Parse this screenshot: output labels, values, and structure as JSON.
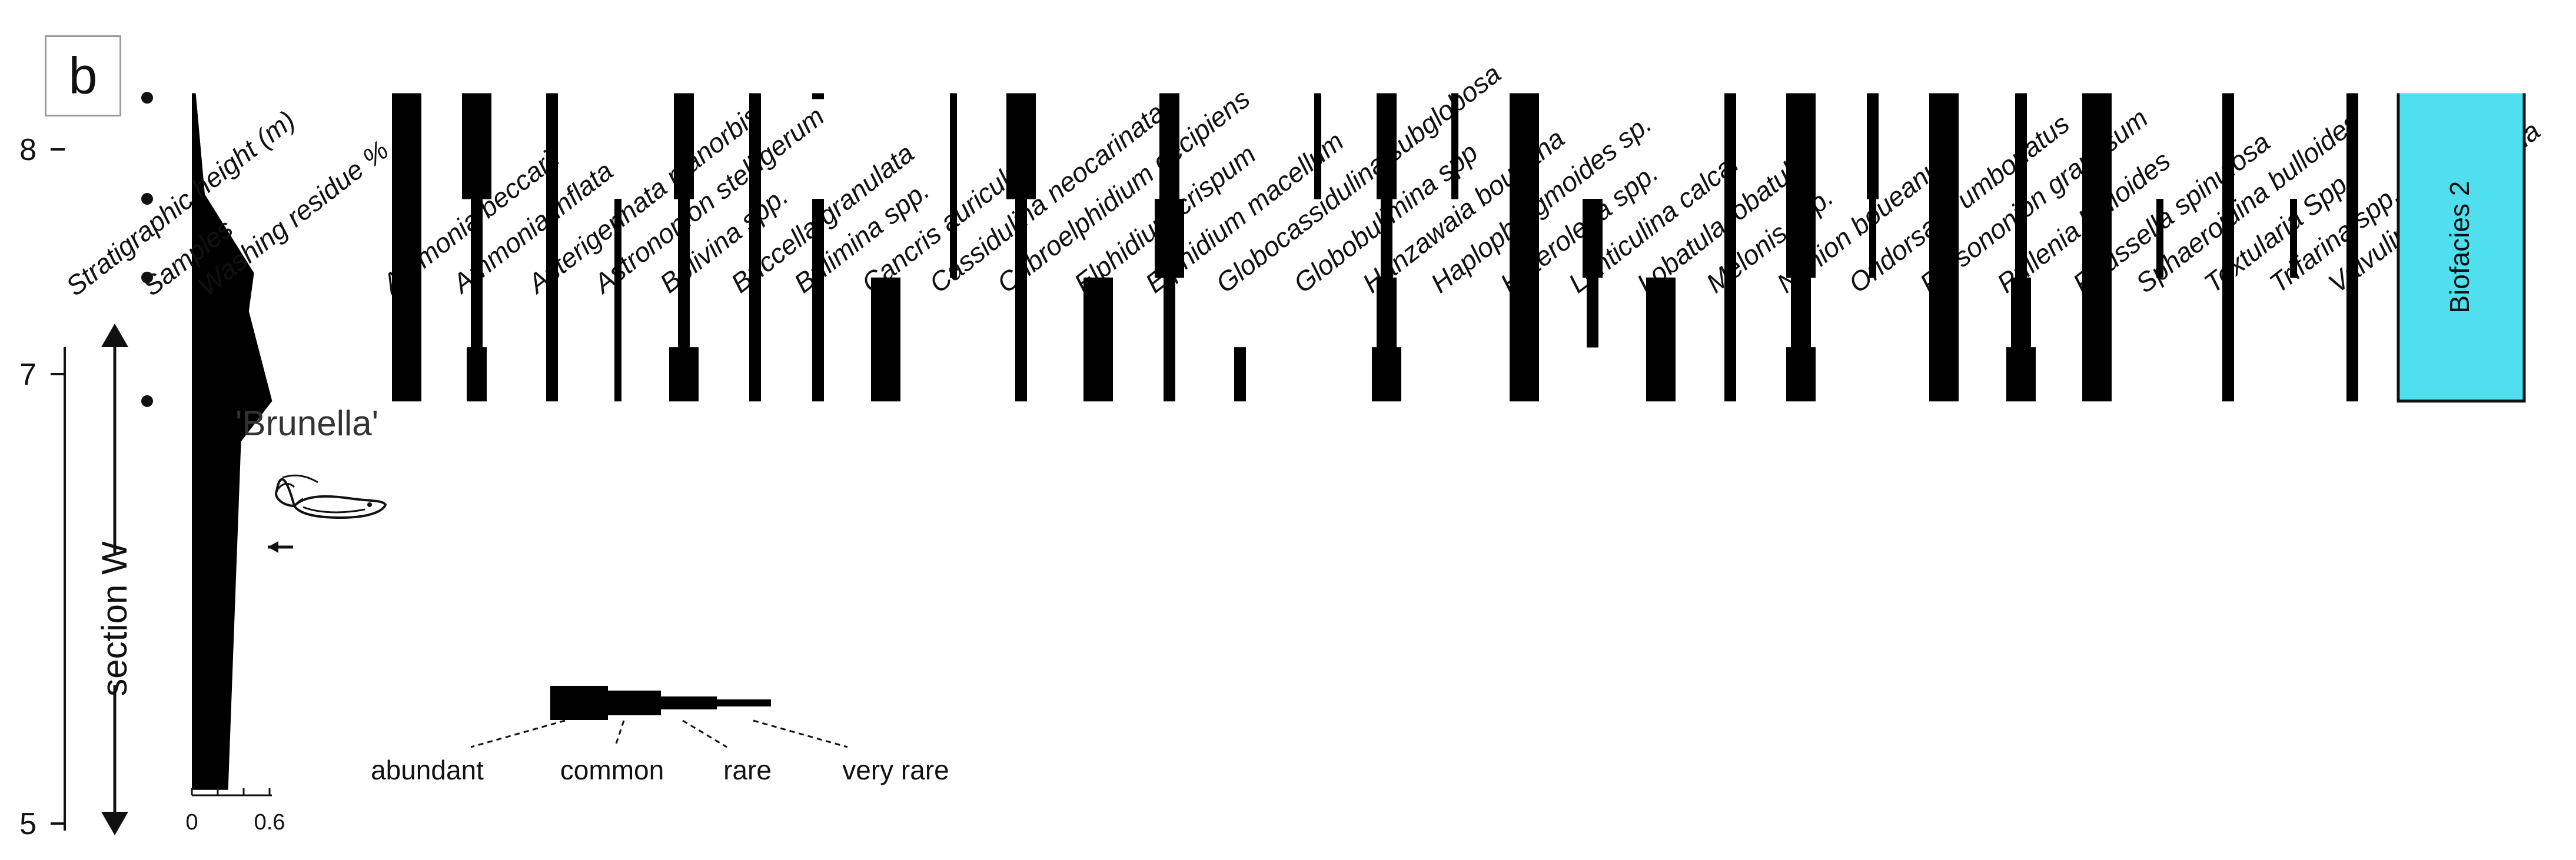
{
  "panel_label": "b",
  "colors": {
    "bar": "#000000",
    "biofacies_fill": "#4fdfee",
    "biofacies_border": "#111111"
  },
  "chart_data": {
    "type": "range-chart",
    "y_axis": {
      "label": "Stratigraphic height (m)",
      "ticks": [
        5,
        7,
        8
      ],
      "range": [
        5,
        8.2
      ]
    },
    "section_label": "section W",
    "samples_label": "Samples",
    "samples": [
      8.23,
      7.78,
      7.43,
      6.88
    ],
    "washing_residue": {
      "label": "Washing residue %",
      "ticks": [
        "0",
        "0.6"
      ],
      "profile": [
        {
          "height": 8.25,
          "value": 0.03
        },
        {
          "height": 7.8,
          "value": 0.1
        },
        {
          "height": 7.45,
          "value": 0.48
        },
        {
          "height": 7.28,
          "value": 0.44
        },
        {
          "height": 6.88,
          "value": 0.62
        },
        {
          "height": 6.7,
          "value": 0.38
        },
        {
          "height": 5.15,
          "value": 0.28
        }
      ],
      "annotation": "'Brunella'"
    },
    "abundance_levels": [
      "abundant",
      "common",
      "rare",
      "very rare"
    ],
    "taxa": [
      {
        "name": "Ammonia beccarii",
        "abundance": [
          "abundant",
          "abundant",
          "abundant",
          "abundant"
        ]
      },
      {
        "name": "Ammonia inflata",
        "abundance": [
          "abundant",
          "rare",
          "rare",
          "common"
        ]
      },
      {
        "name": "Asterigerinata planorbis",
        "abundance": [
          "rare",
          "rare",
          "rare",
          "rare"
        ]
      },
      {
        "name": "Astrononion stelligerum",
        "abundance": [
          "",
          "very rare",
          "very rare",
          "very rare"
        ]
      },
      {
        "name": "Bolivina spp.",
        "abundance": [
          "common",
          "rare",
          "rare",
          "abundant"
        ]
      },
      {
        "name": "Buccella  granulata",
        "abundance": [
          "rare",
          "rare",
          "rare",
          "rare"
        ]
      },
      {
        "name": "Bulimina spp.",
        "abundance": [
          "",
          "rare",
          "rare",
          "rare"
        ]
      },
      {
        "name": "Cancris auriculus",
        "abundance": [
          "",
          "",
          "abundant",
          "abundant"
        ]
      },
      {
        "name": "Cassidulina neocarinata",
        "abundance": [
          "very rare",
          "very rare",
          "",
          ""
        ]
      },
      {
        "name": "Cribroelphidium decipiens",
        "abundance": [
          "abundant",
          "rare",
          "rare",
          "rare"
        ]
      },
      {
        "name": "Elphidium crispum",
        "abundance": [
          "",
          "",
          "abundant",
          "abundant"
        ]
      },
      {
        "name": "Elphidium macellum",
        "abundance": [
          "common",
          "abundant",
          "rare",
          "rare"
        ]
      },
      {
        "name": "Globocassidulina subglobosa",
        "abundance": [
          "",
          "",
          "",
          "rare"
        ]
      },
      {
        "name": "Globobulimina spp",
        "abundance": [
          "very rare",
          "",
          "",
          ""
        ]
      },
      {
        "name": "Hanzawaia boueana",
        "abundance": [
          "common",
          "rare",
          "common",
          "abundant"
        ]
      },
      {
        "name": "Haplophragmoides sp.",
        "abundance": [
          "very rare",
          "",
          "",
          ""
        ]
      },
      {
        "name": "Heterolepa spp.",
        "abundance": [
          "abundant",
          "abundant",
          "abundant",
          "abundant"
        ]
      },
      {
        "name": "Lenticulina calcar",
        "abundance": [
          "",
          "common",
          "rare",
          ""
        ]
      },
      {
        "name": "Lobatula lobatula",
        "abundance": [
          "",
          "",
          "abundant",
          "abundant"
        ]
      },
      {
        "name": "Melonis spp.",
        "abundance": [
          "rare",
          "rare",
          "rare",
          "rare"
        ]
      },
      {
        "name": "Nonion boueanum",
        "abundance": [
          "abundant",
          "abundant",
          "common",
          "abundant"
        ]
      },
      {
        "name": "Oridorsalis umbonatus",
        "abundance": [
          "rare",
          "very rare",
          "",
          ""
        ]
      },
      {
        "name": "Prosononion granosum",
        "abundance": [
          "abundant",
          "abundant",
          "abundant",
          "abundant"
        ]
      },
      {
        "name": "Pullenia bulloides",
        "abundance": [
          "rare",
          "rare",
          "common",
          "abundant"
        ]
      },
      {
        "name": "Reussella spinulosa",
        "abundance": [
          "abundant",
          "abundant",
          "abundant",
          "abundant"
        ]
      },
      {
        "name": "Sphaeroidina bulloides",
        "abundance": [
          "",
          "very rare",
          "",
          ""
        ]
      },
      {
        "name": "Textularia Spp.",
        "abundance": [
          "rare",
          "rare",
          "rare",
          "rare"
        ]
      },
      {
        "name": "Trifarina spp.",
        "abundance": [
          "",
          "very rare",
          "",
          ""
        ]
      },
      {
        "name": "Valvulineria bradyana",
        "abundance": [
          "rare",
          "rare",
          "rare",
          "rare"
        ]
      }
    ],
    "biofacies": {
      "label": "Biofacies 2",
      "from": 6.88,
      "to": 8.25
    }
  }
}
